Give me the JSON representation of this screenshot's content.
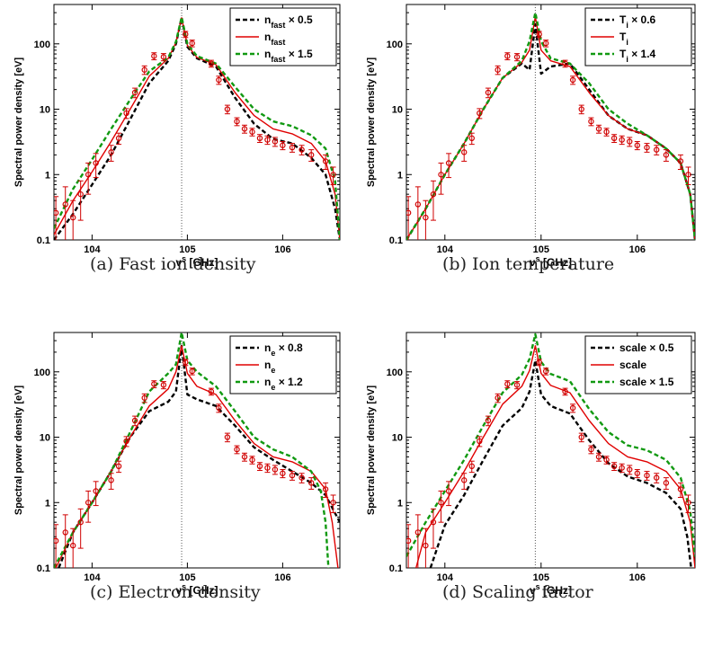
{
  "chart_data": [
    {
      "type": "line",
      "caption": "(a) Fast ion density",
      "xlabel": "ν^s [GHz]",
      "ylabel": "Spectral power density [eV]",
      "y_scale": "log",
      "xlim": [
        103.6,
        106.6
      ],
      "ylim": [
        0.1,
        400
      ],
      "xticks": [
        "104",
        "105",
        "106"
      ],
      "yticks": [
        "0.1",
        "1",
        "10",
        "100"
      ],
      "reference_line_x": 104.94,
      "legend_position": "top-right",
      "series": [
        {
          "name": "n_fast × 0.5",
          "color": "#000000",
          "style": "dashed",
          "x": [
            103.6,
            103.8,
            104.0,
            104.2,
            104.4,
            104.6,
            104.8,
            104.88,
            104.94,
            105.0,
            105.1,
            105.3,
            105.5,
            105.7,
            105.9,
            106.1,
            106.3,
            106.45,
            106.55,
            106.6
          ],
          "y": [
            0.1,
            0.25,
            0.7,
            2,
            7,
            25,
            55,
            100,
            250,
            90,
            60,
            45,
            15,
            6,
            3.5,
            3,
            1.8,
            1.0,
            0.3,
            0.1
          ]
        },
        {
          "name": "n_fast",
          "color": "#e00000",
          "style": "solid",
          "x": [
            103.6,
            103.8,
            104.0,
            104.2,
            104.4,
            104.6,
            104.8,
            104.88,
            104.94,
            105.0,
            105.1,
            105.3,
            105.5,
            105.7,
            105.9,
            106.1,
            106.3,
            106.45,
            106.55,
            106.6
          ],
          "y": [
            0.12,
            0.4,
            1.1,
            3.2,
            10,
            32,
            60,
            105,
            250,
            95,
            62,
            48,
            18,
            8,
            5,
            4.2,
            3,
            1.6,
            0.5,
            0.1
          ]
        },
        {
          "name": "n_fast × 1.5",
          "color": "#119911",
          "style": "dashed",
          "x": [
            103.6,
            103.8,
            104.0,
            104.2,
            104.4,
            104.6,
            104.8,
            104.88,
            104.94,
            105.0,
            105.1,
            105.3,
            105.5,
            105.7,
            105.9,
            106.1,
            106.3,
            106.45,
            106.55,
            106.6
          ],
          "y": [
            0.15,
            0.6,
            1.7,
            5,
            14,
            38,
            62,
            108,
            255,
            100,
            65,
            50,
            22,
            10,
            6.5,
            5.5,
            4,
            2.5,
            0.8,
            0.1
          ]
        }
      ],
      "measurements": {
        "x": [
          103.62,
          103.72,
          103.8,
          103.88,
          103.96,
          104.04,
          104.2,
          104.28,
          104.36,
          104.45,
          104.55,
          104.65,
          104.75,
          104.98,
          105.05,
          105.25,
          105.33,
          105.42,
          105.52,
          105.6,
          105.68,
          105.76,
          105.84,
          105.92,
          106.0,
          106.1,
          106.2,
          106.3,
          106.45,
          106.53
        ],
        "y": [
          0.26,
          0.35,
          0.22,
          0.5,
          1.0,
          1.5,
          2.2,
          3.6,
          8.7,
          18,
          40,
          65,
          63,
          140,
          102,
          50,
          28,
          10,
          6.5,
          5.0,
          4.5,
          3.6,
          3.4,
          3.2,
          2.8,
          2.6,
          2.4,
          2.0,
          1.6,
          1.0
        ],
        "err": [
          0.2,
          0.3,
          0.18,
          0.3,
          0.5,
          0.6,
          0.6,
          0.7,
          1.5,
          3,
          6,
          8,
          8,
          15,
          12,
          6,
          4,
          1.5,
          0.9,
          0.7,
          0.6,
          0.5,
          0.5,
          0.5,
          0.4,
          0.4,
          0.4,
          0.4,
          0.4,
          0.3
        ]
      }
    },
    {
      "type": "line",
      "caption": "(b) Ion temperature",
      "xlabel": "ν^s [GHz]",
      "ylabel": "Spectral power density [eV]",
      "y_scale": "log",
      "xlim": [
        103.6,
        106.6
      ],
      "ylim": [
        0.1,
        400
      ],
      "xticks": [
        "104",
        "105",
        "106"
      ],
      "yticks": [
        "0.1",
        "1",
        "10",
        "100"
      ],
      "reference_line_x": 104.94,
      "legend_position": "top-right",
      "series": [
        {
          "name": "T_i × 0.6",
          "color": "#000000",
          "style": "dashed",
          "x": [
            103.6,
            103.8,
            104.0,
            104.2,
            104.4,
            104.6,
            104.8,
            104.88,
            104.94,
            105.0,
            105.1,
            105.3,
            105.5,
            105.7,
            105.9,
            106.1,
            106.3,
            106.45,
            106.55,
            106.6
          ],
          "y": [
            0.1,
            0.3,
            1.0,
            3,
            10,
            30,
            50,
            40,
            200,
            35,
            45,
            50,
            20,
            8,
            5,
            4,
            2.5,
            1.5,
            0.5,
            0.1
          ]
        },
        {
          "name": "T_i",
          "color": "#e00000",
          "style": "solid",
          "x": [
            103.6,
            103.8,
            104.0,
            104.2,
            104.4,
            104.6,
            104.8,
            104.88,
            104.94,
            105.0,
            105.1,
            105.3,
            105.5,
            105.7,
            105.9,
            106.1,
            106.3,
            106.45,
            106.55,
            106.6
          ],
          "y": [
            0.1,
            0.3,
            1.0,
            3,
            10,
            30,
            52,
            80,
            260,
            80,
            55,
            45,
            18,
            8,
            5,
            4,
            2.5,
            1.5,
            0.5,
            0.1
          ]
        },
        {
          "name": "T_i × 1.4",
          "color": "#119911",
          "style": "dashed",
          "x": [
            103.6,
            103.8,
            104.0,
            104.2,
            104.4,
            104.6,
            104.8,
            104.88,
            104.94,
            105.0,
            105.1,
            105.3,
            105.5,
            105.7,
            105.9,
            106.1,
            106.3,
            106.45,
            106.55,
            106.6
          ],
          "y": [
            0.1,
            0.3,
            1.0,
            3,
            10,
            30,
            55,
            110,
            300,
            110,
            60,
            50,
            25,
            10,
            6,
            4,
            2.5,
            1.5,
            0.5,
            0.1
          ]
        }
      ],
      "measurements": {
        "x": [
          103.62,
          103.72,
          103.8,
          103.88,
          103.96,
          104.04,
          104.2,
          104.28,
          104.36,
          104.45,
          104.55,
          104.65,
          104.75,
          104.98,
          105.05,
          105.25,
          105.33,
          105.42,
          105.52,
          105.6,
          105.68,
          105.76,
          105.84,
          105.92,
          106.0,
          106.1,
          106.2,
          106.3,
          106.45,
          106.53
        ],
        "y": [
          0.26,
          0.35,
          0.22,
          0.5,
          1.0,
          1.5,
          2.2,
          3.6,
          8.7,
          18,
          40,
          65,
          63,
          140,
          102,
          50,
          28,
          10,
          6.5,
          5.0,
          4.5,
          3.6,
          3.4,
          3.2,
          2.8,
          2.6,
          2.4,
          2.0,
          1.6,
          1.0
        ],
        "err": [
          0.2,
          0.3,
          0.18,
          0.3,
          0.5,
          0.6,
          0.6,
          0.7,
          1.5,
          3,
          6,
          8,
          8,
          15,
          12,
          6,
          4,
          1.5,
          0.9,
          0.7,
          0.6,
          0.5,
          0.5,
          0.5,
          0.4,
          0.4,
          0.4,
          0.4,
          0.4,
          0.3
        ]
      }
    },
    {
      "type": "line",
      "caption": "(c) Electron density",
      "xlabel": "ν^s [GHz]",
      "ylabel": "Spectral power density [eV]",
      "y_scale": "log",
      "xlim": [
        103.6,
        106.6
      ],
      "ylim": [
        0.1,
        400
      ],
      "xticks": [
        "104",
        "105",
        "106"
      ],
      "yticks": [
        "0.1",
        "1",
        "10",
        "100"
      ],
      "reference_line_x": 104.94,
      "legend_position": "top-right",
      "series": [
        {
          "name": "n_e × 0.8",
          "color": "#000000",
          "style": "dashed",
          "x": [
            103.65,
            103.8,
            104.0,
            104.2,
            104.4,
            104.6,
            104.8,
            104.88,
            104.94,
            105.0,
            105.1,
            105.3,
            105.5,
            105.7,
            105.9,
            106.1,
            106.3,
            106.45,
            106.6,
            106.68
          ],
          "y": [
            0.1,
            0.35,
            1.0,
            3,
            10,
            25,
            35,
            50,
            250,
            45,
            38,
            30,
            15,
            7,
            4.5,
            3,
            2,
            1.3,
            0.5,
            0.1
          ]
        },
        {
          "name": "n_e",
          "color": "#e00000",
          "style": "solid",
          "x": [
            103.62,
            103.8,
            104.0,
            104.2,
            104.4,
            104.6,
            104.8,
            104.88,
            104.94,
            105.0,
            105.1,
            105.3,
            105.5,
            105.7,
            105.9,
            106.1,
            106.3,
            106.45,
            106.52,
            106.58
          ],
          "y": [
            0.1,
            0.35,
            1.0,
            3,
            10,
            30,
            55,
            100,
            250,
            95,
            60,
            45,
            18,
            8,
            5,
            4.2,
            3,
            1.6,
            0.5,
            0.1
          ]
        },
        {
          "name": "n_e × 1.2",
          "color": "#119911",
          "style": "dashed",
          "x": [
            103.6,
            103.8,
            104.0,
            104.2,
            104.4,
            104.6,
            104.8,
            104.88,
            104.94,
            105.0,
            105.1,
            105.3,
            105.5,
            105.7,
            105.9,
            106.1,
            106.3,
            106.4,
            106.45,
            106.48
          ],
          "y": [
            0.1,
            0.35,
            1.0,
            3,
            12,
            50,
            95,
            130,
            400,
            150,
            100,
            60,
            25,
            10,
            6.5,
            5,
            3,
            1.5,
            0.5,
            0.1
          ]
        }
      ],
      "measurements": {
        "x": [
          103.62,
          103.72,
          103.8,
          103.88,
          103.96,
          104.04,
          104.2,
          104.28,
          104.36,
          104.45,
          104.55,
          104.65,
          104.75,
          104.98,
          105.05,
          105.25,
          105.33,
          105.42,
          105.52,
          105.6,
          105.68,
          105.76,
          105.84,
          105.92,
          106.0,
          106.1,
          106.2,
          106.3,
          106.45,
          106.53
        ],
        "y": [
          0.26,
          0.35,
          0.22,
          0.5,
          1.0,
          1.5,
          2.2,
          3.6,
          8.7,
          18,
          40,
          65,
          63,
          140,
          102,
          50,
          28,
          10,
          6.5,
          5.0,
          4.5,
          3.6,
          3.4,
          3.2,
          2.8,
          2.6,
          2.4,
          2.0,
          1.6,
          1.0
        ],
        "err": [
          0.2,
          0.3,
          0.18,
          0.3,
          0.5,
          0.6,
          0.6,
          0.7,
          1.5,
          3,
          6,
          8,
          8,
          15,
          12,
          6,
          4,
          1.5,
          0.9,
          0.7,
          0.6,
          0.5,
          0.5,
          0.5,
          0.4,
          0.4,
          0.4,
          0.4,
          0.4,
          0.3
        ]
      }
    },
    {
      "type": "line",
      "caption": "(d) Scaling factor",
      "xlabel": "ν^s [GHz]",
      "ylabel": "Spectral power density [eV]",
      "y_scale": "log",
      "xlim": [
        103.6,
        106.6
      ],
      "ylim": [
        0.1,
        400
      ],
      "xticks": [
        "104",
        "105",
        "106"
      ],
      "yticks": [
        "0.1",
        "1",
        "10",
        "100"
      ],
      "reference_line_x": 104.94,
      "legend_position": "top-right",
      "series": [
        {
          "name": "scale × 0.5",
          "color": "#000000",
          "style": "dashed",
          "x": [
            103.85,
            104.0,
            104.2,
            104.4,
            104.6,
            104.8,
            104.88,
            104.94,
            105.0,
            105.1,
            105.3,
            105.5,
            105.7,
            105.9,
            106.1,
            106.3,
            106.45,
            106.52,
            106.56
          ],
          "y": [
            0.1,
            0.45,
            1.3,
            4.5,
            15,
            28,
            50,
            150,
            45,
            30,
            23,
            9,
            4,
            2.5,
            2,
            1.4,
            0.8,
            0.3,
            0.1
          ]
        },
        {
          "name": "scale",
          "color": "#e00000",
          "style": "solid",
          "x": [
            103.7,
            103.8,
            104.0,
            104.2,
            104.4,
            104.6,
            104.8,
            104.88,
            104.94,
            105.0,
            105.1,
            105.3,
            105.5,
            105.7,
            105.9,
            106.1,
            106.3,
            106.45,
            106.55,
            106.6
          ],
          "y": [
            0.1,
            0.35,
            1.0,
            3,
            10,
            32,
            60,
            105,
            250,
            95,
            62,
            48,
            18,
            8,
            5,
            4.2,
            3,
            1.6,
            0.5,
            0.1
          ]
        },
        {
          "name": "scale × 1.5",
          "color": "#119911",
          "style": "dashed",
          "x": [
            103.6,
            103.8,
            104.0,
            104.2,
            104.4,
            104.6,
            104.8,
            104.88,
            104.94,
            105.0,
            105.1,
            105.3,
            105.5,
            105.7,
            105.9,
            106.1,
            106.3,
            106.45,
            106.55,
            106.6
          ],
          "y": [
            0.15,
            0.5,
            1.5,
            4.5,
            15,
            48,
            90,
            158,
            375,
            142,
            93,
            72,
            27,
            12,
            7.5,
            6.3,
            4.5,
            2.4,
            0.75,
            0.15
          ]
        }
      ],
      "measurements": {
        "x": [
          103.62,
          103.72,
          103.8,
          103.88,
          103.96,
          104.04,
          104.2,
          104.28,
          104.36,
          104.45,
          104.55,
          104.65,
          104.75,
          104.98,
          105.05,
          105.25,
          105.33,
          105.42,
          105.52,
          105.6,
          105.68,
          105.76,
          105.84,
          105.92,
          106.0,
          106.1,
          106.2,
          106.3,
          106.45,
          106.53
        ],
        "y": [
          0.26,
          0.35,
          0.22,
          0.5,
          1.0,
          1.5,
          2.2,
          3.6,
          8.7,
          18,
          40,
          65,
          63,
          140,
          102,
          50,
          28,
          10,
          6.5,
          5.0,
          4.5,
          3.6,
          3.4,
          3.2,
          2.8,
          2.6,
          2.4,
          2.0,
          1.6,
          1.0
        ],
        "err": [
          0.2,
          0.3,
          0.18,
          0.3,
          0.5,
          0.6,
          0.6,
          0.7,
          1.5,
          3,
          6,
          8,
          8,
          15,
          12,
          6,
          4,
          1.5,
          0.9,
          0.7,
          0.6,
          0.5,
          0.5,
          0.5,
          0.4,
          0.4,
          0.4,
          0.4,
          0.4,
          0.3
        ]
      }
    }
  ]
}
